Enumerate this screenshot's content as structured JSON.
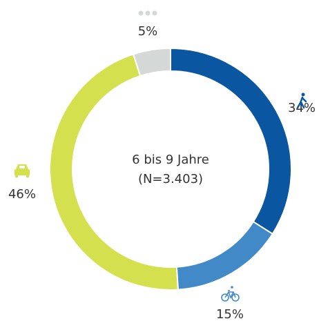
{
  "chart_data": {
    "type": "donut",
    "center_label": [
      "6 bis 9 Jahre",
      "(N=3.403)"
    ],
    "values": [
      34,
      15,
      46,
      5
    ],
    "value_labels": [
      "34%",
      "15%",
      "46%",
      "5%"
    ],
    "colors": [
      "#0a56a0",
      "#418ac7",
      "#d5e04f",
      "#d4d8d6"
    ]
  }
}
